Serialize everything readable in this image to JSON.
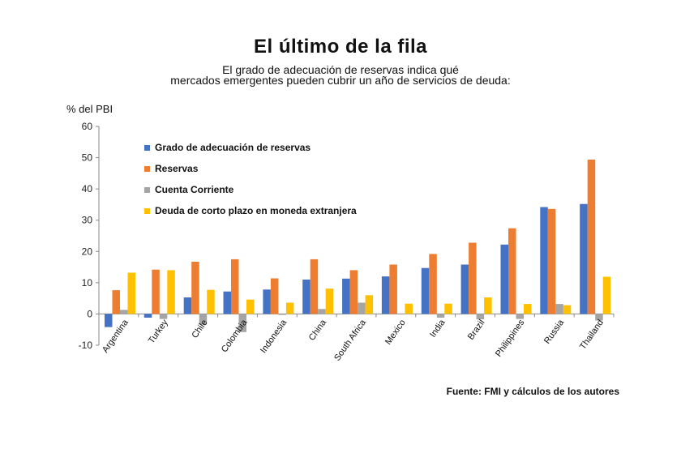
{
  "header": {
    "title": "El último de la fila",
    "subtitle_line1": "El grado de adecuación de reservas indica qué",
    "subtitle_line2": "mercados emergentes pueden cubrir un año de servicios de deuda:"
  },
  "source": "Fuente: FMI y cálculos de los autores",
  "chart_data": {
    "type": "bar",
    "ylabel": "% del PBI",
    "ylim": [
      -10,
      60
    ],
    "yticks": [
      -10,
      0,
      10,
      20,
      30,
      40,
      50,
      60
    ],
    "grid": false,
    "legend_position": "top-left",
    "categories": [
      "Argentina",
      "Turkey",
      "Chile",
      "Colombia",
      "Indonesia",
      "China",
      "South Africa",
      "Mexico",
      "India",
      "Brazil",
      "Philippines",
      "Russia",
      "Thailand"
    ],
    "series": [
      {
        "name": "Grado de adecuación de reservas",
        "color": "#4472C4",
        "values": [
          -4.2,
          -1.2,
          5.3,
          7.2,
          7.8,
          11.0,
          11.3,
          12.0,
          14.7,
          15.8,
          22.2,
          34.2,
          35.2
        ]
      },
      {
        "name": "Reservas",
        "color": "#ED7D31",
        "values": [
          7.6,
          14.2,
          16.7,
          17.5,
          11.4,
          17.5,
          14.0,
          15.8,
          19.2,
          22.8,
          27.4,
          33.6,
          49.4
        ]
      },
      {
        "name": "Cuenta Corriente",
        "color": "#A5A5A5",
        "values": [
          1.3,
          -1.6,
          -3.4,
          -5.8,
          -0.3,
          1.6,
          3.6,
          0.0,
          -1.2,
          -1.7,
          -1.6,
          3.2,
          -2.1
        ]
      },
      {
        "name": "Deuda de corto plazo en moneda extranjera",
        "color": "#FFC000",
        "values": [
          13.2,
          14.0,
          7.7,
          4.6,
          3.6,
          8.1,
          6.0,
          3.3,
          3.3,
          5.3,
          3.2,
          2.8,
          11.9
        ]
      }
    ]
  }
}
